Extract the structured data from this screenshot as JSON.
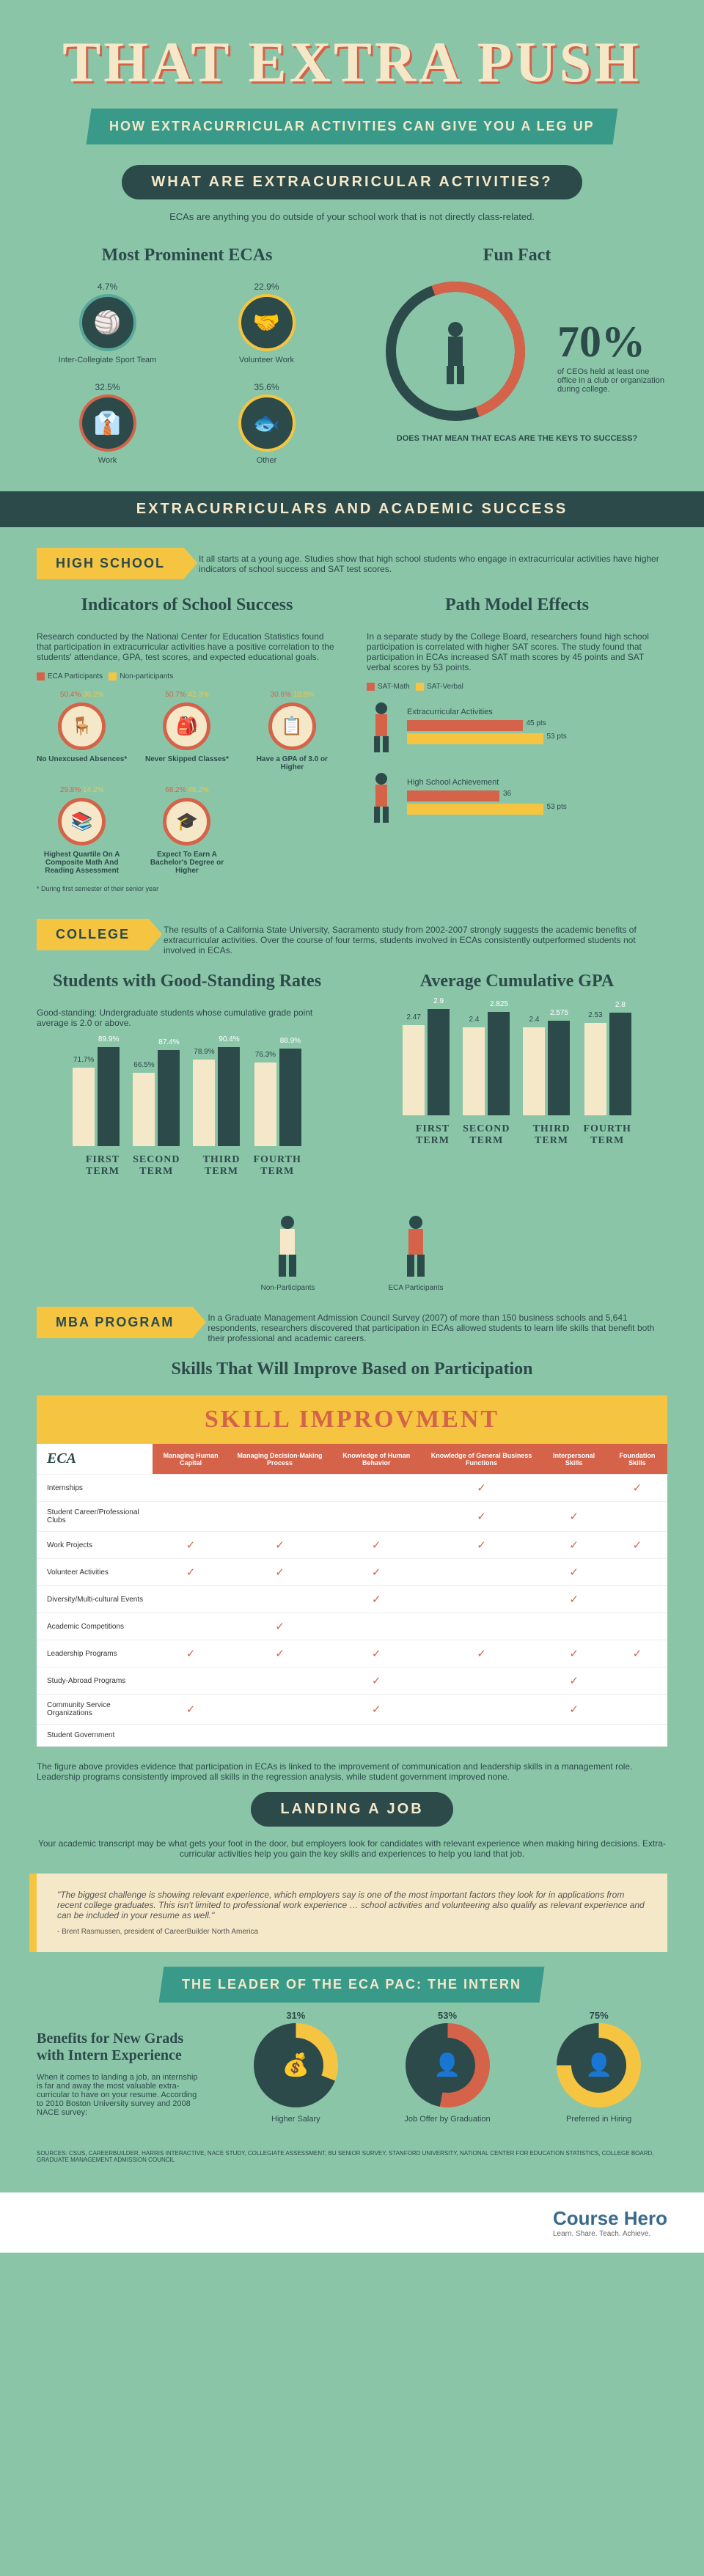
{
  "title": "THAT EXTRA PUSH",
  "subtitle": "HOW EXTRACURRICULAR ACTIVITIES CAN GIVE YOU A LEG UP",
  "s1": {
    "heading": "WHAT ARE EXTRACURRICULAR ACTIVITIES?",
    "intro": "ECAs are anything you do outside of your school work that is not directly class-related.",
    "left_title": "Most Prominent ECAs",
    "right_title": "Fun Fact",
    "ecas": [
      {
        "pct": "4.7%",
        "label": "Inter-Collegiate Sport Team",
        "icon": "🏐",
        "border": "#5aa89a"
      },
      {
        "pct": "22.9%",
        "label": "Volunteer Work",
        "icon": "🤝",
        "border": "#f5c542"
      },
      {
        "pct": "32.5%",
        "label": "Work",
        "icon": "👔",
        "border": "#d4634a"
      },
      {
        "pct": "35.6%",
        "label": "Other",
        "icon": "🐟",
        "border": "#f5c542"
      }
    ],
    "big_pct": "70%",
    "ff_text": "of CEOs held at least one office in a club or organization during college.",
    "ff_sub": "DOES THAT MEAN THAT ECAS ARE THE KEYS TO SUCCESS?"
  },
  "s2": {
    "banner": "EXTRACURRICULARS AND ACADEMIC SUCCESS",
    "tag": "HIGH SCHOOL",
    "tag_text": "It all starts at a young age. Studies show that high school students who engage in extracurricular activities have higher indicators of school success and SAT test scores.",
    "left_title": "Indicators of School Success",
    "right_title": "Path Model Effects",
    "left_text": "Research conducted by the National Center for Education Statistics found that participation in extracurricular activities have a positive correlation to the students' attendance, GPA, test scores, and expected educational goals.",
    "legend_a": "ECA Participants",
    "legend_b": "Non-participants",
    "color_a": "#d4634a",
    "color_b": "#f5c542",
    "indicators": [
      {
        "a": "50.4%",
        "b": "36.2%",
        "label": "No Unexcused Absences*",
        "icon": "🪑"
      },
      {
        "a": "50.7%",
        "b": "42.3%",
        "label": "Never Skipped Classes*",
        "icon": "🎒"
      },
      {
        "a": "30.6%",
        "b": "10.8%",
        "label": "Have a GPA of 3.0 or Higher",
        "icon": "📋"
      },
      {
        "a": "29.8%",
        "b": "14.2%",
        "label": "Highest Quartile On A Composite Math And Reading Assessment",
        "icon": "📚"
      },
      {
        "a": "68.2%",
        "b": "48.2%",
        "label": "Expect To Earn A Bachelor's Degree or Higher",
        "icon": "🎓"
      }
    ],
    "footnote": "* During first semester of their senior year",
    "right_text": "In a separate study by the College Board, researchers found high school participation is correlated with higher SAT scores. The study found that participation in ECAs increased SAT math scores by 45 points and SAT verbal scores by 53 points.",
    "legend_c": "SAT-Math",
    "legend_d": "SAT-Verbal",
    "path_items": [
      {
        "label": "Extracurricular Activities",
        "bars": [
          {
            "c": "#d4634a",
            "w": 45,
            "v": "45 pts"
          },
          {
            "c": "#f5c542",
            "w": 53,
            "v": "53 pts"
          }
        ]
      },
      {
        "label": "High School Achievement",
        "bars": [
          {
            "c": "#d4634a",
            "w": 36,
            "v": "36"
          },
          {
            "c": "#f5c542",
            "w": 53,
            "v": "53 pts"
          }
        ]
      }
    ]
  },
  "s3": {
    "tag": "COLLEGE",
    "tag_text": "The results of a California State University, Sacramento study from 2002-2007 strongly suggests the academic benefits of extracurricular activities. Over the course of four terms, students involved in ECAs consistently outperformed students not involved in ECAs.",
    "left_title": "Students with Good-Standing Rates",
    "right_title": "Average Cumulative GPA",
    "left_note": "Good-standing: Undergraduate students whose cumulative grade point average is 2.0 or above.",
    "terms": [
      "FIRST TERM",
      "SECOND TERM",
      "THIRD TERM",
      "FOURTH TERM"
    ],
    "good_standing": {
      "non": [
        71.7,
        66.5,
        78.9,
        76.3
      ],
      "eca": [
        89.9,
        87.4,
        90.4,
        88.9
      ]
    },
    "gpa": {
      "non": [
        2.47,
        2.4,
        2.4,
        2.53
      ],
      "eca": [
        2.9,
        2.825,
        2.575,
        2.8
      ]
    },
    "color_non": "#f5e8c8",
    "color_eca": "#2c4a4a",
    "people": [
      {
        "label": "Non-Participants"
      },
      {
        "label": "ECA Participants"
      }
    ]
  },
  "s4": {
    "tag": "MBA PROGRAM",
    "tag_text": "In a Graduate Management Admission Council Survey (2007) of more than 150 business schools and 5,641 respondents, researchers discovered that participation in ECAs allowed students to learn life skills that benefit both their professional and academic careers.",
    "title": "Skills That Will Improve Based on Participation",
    "table_header": "SKILL IMPROVMENT",
    "corner": "ECA",
    "cols": [
      "Managing Human Capital",
      "Managing Decision-Making Process",
      "Knowledge of Human Behavior",
      "Knowledge of General Business Functions",
      "Interpersonal Skills",
      "Foundation Skills"
    ],
    "rows": [
      {
        "n": "Internships",
        "c": [
          0,
          0,
          0,
          1,
          0,
          1
        ]
      },
      {
        "n": "Student Career/Professional Clubs",
        "c": [
          0,
          0,
          0,
          1,
          1,
          0
        ]
      },
      {
        "n": "Work Projects",
        "c": [
          1,
          1,
          1,
          1,
          1,
          1
        ]
      },
      {
        "n": "Volunteer Activities",
        "c": [
          1,
          1,
          1,
          0,
          1,
          0
        ]
      },
      {
        "n": "Diversity/Multi-cultural Events",
        "c": [
          0,
          0,
          1,
          0,
          1,
          0
        ]
      },
      {
        "n": "Academic Competitions",
        "c": [
          0,
          1,
          0,
          0,
          0,
          0
        ]
      },
      {
        "n": "Leadership Programs",
        "c": [
          1,
          1,
          1,
          1,
          1,
          1
        ]
      },
      {
        "n": "Study-Abroad Programs",
        "c": [
          0,
          0,
          1,
          0,
          1,
          0
        ]
      },
      {
        "n": "Community Service Organizations",
        "c": [
          1,
          0,
          1,
          0,
          1,
          0
        ]
      },
      {
        "n": "Student Government",
        "c": [
          0,
          0,
          0,
          0,
          0,
          0
        ]
      }
    ],
    "caption": "The figure above provides evidence that participation in ECAs is linked to the improvement of communication and leadership skills in a management role. Leadership programs consistently improved all skills in the regression analysis, while student government improved none."
  },
  "s5": {
    "heading": "LANDING A JOB",
    "intro": "Your academic transcript may be what gets your foot in the door, but employers look for candidates with relevant experience when making hiring decisions. Extra-curricular activities help you gain the key skills and experiences to help you land that job.",
    "quote": "\"The biggest challenge is showing relevant experience, which employers say is one of the most important factors they look for in applications from recent college graduates. This isn't limited to professional work experience … school activities and volunteering also qualify as relevant experience and can be included in your resume as well.\"",
    "quote_attr": "- Brent Rasmussen, president of CareerBuilder North America",
    "sub_banner": "THE LEADER OF THE ECA PAC: THE INTERN",
    "ben_title": "Benefits for New Grads with Intern Experience",
    "ben_text": "When it comes to landing a job, an internship is far and away the most valuable extra-curricular to have on your resume. According to 2010 Boston University survey and 2008 NACE survey:",
    "donuts": [
      {
        "pct": "31%",
        "label": "Higher Salary",
        "icon": "💰",
        "fill": 31,
        "c": "#f5c542"
      },
      {
        "pct": "53%",
        "label": "Job Offer by Graduation",
        "icon": "👤",
        "fill": 53,
        "c": "#d4634a"
      },
      {
        "pct": "75%",
        "label": "Preferred in Hiring",
        "icon": "👤",
        "fill": 75,
        "c": "#f5c542"
      }
    ]
  },
  "sources": "SOURCES: CSUS, CAREERBUILDER, HARRIS INTERACTIVE, NACE STUDY, COLLEGIATE ASSESSMENT, BU SENIOR SURVEY, STANFORD UNIVERSITY, NATIONAL CENTER FOR EDUCATION STATISTICS, COLLEGE BOARD, GRADUATE MANAGEMENT ADMISSION COUNCIL",
  "footer": {
    "brand": "Course Hero",
    "tag": "Learn. Share. Teach. Achieve."
  }
}
